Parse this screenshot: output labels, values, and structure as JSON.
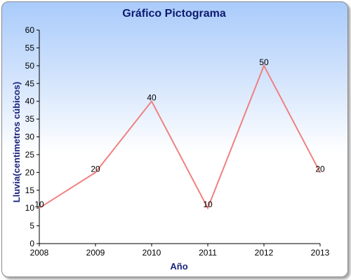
{
  "chart_data": {
    "type": "line",
    "title": "Gráfico Pictograma",
    "xlabel": "Año",
    "ylabel": "Lluvia(centimetros cúbicos)",
    "x": [
      "2008",
      "2009",
      "2010",
      "2011",
      "2012",
      "2013"
    ],
    "series": [
      {
        "values": [
          10,
          20,
          40,
          10,
          50,
          20
        ],
        "color": "#f08080"
      }
    ],
    "data_labels": [
      "10",
      "20",
      "40",
      "10",
      "50",
      "20"
    ],
    "ylim": [
      0,
      60
    ],
    "yticks": [
      "0",
      "5",
      "10",
      "15",
      "20",
      "25",
      "30",
      "35",
      "40",
      "45",
      "50",
      "55",
      "60"
    ],
    "grid": false,
    "legend": "none"
  },
  "colors": {
    "background_top": "#a9cbfb",
    "background_bottom": "#ffffff",
    "title": "#0d1a6e",
    "axis_title": "#1a237e",
    "line": "#f08080"
  }
}
